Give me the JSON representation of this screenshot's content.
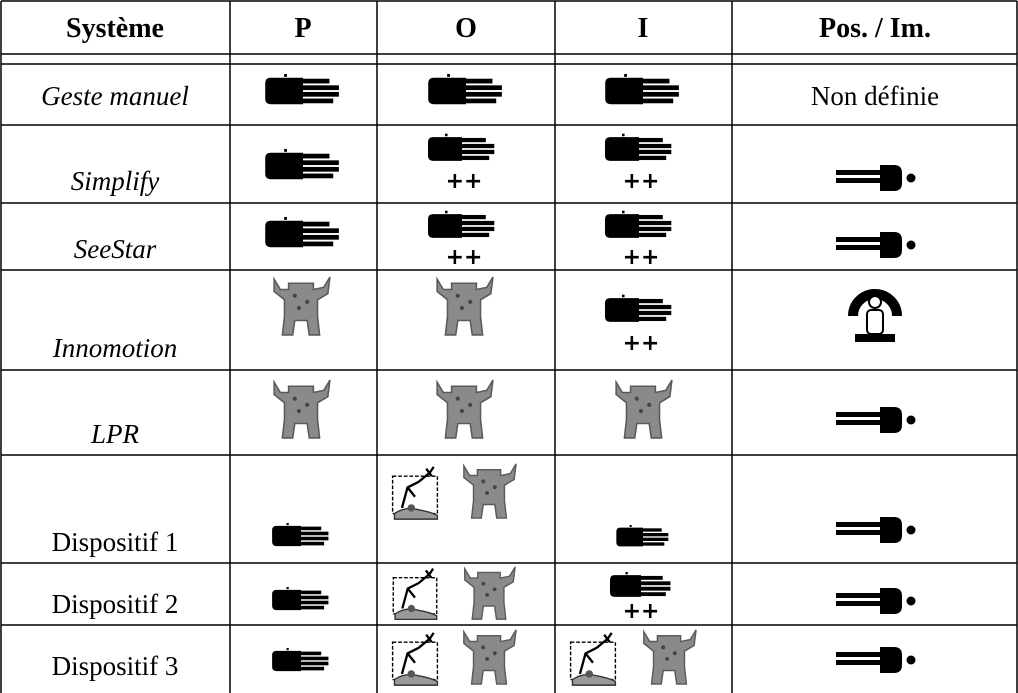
{
  "table": {
    "headers": [
      "Système",
      "P",
      "O",
      "I",
      "Pos. / Im."
    ],
    "rows": [
      {
        "system": "Geste manuel",
        "pos": "Non définie"
      },
      {
        "system": "Simplify",
        "O": "++",
        "I": "++"
      },
      {
        "system": "SeeStar",
        "O": "++",
        "I": "++"
      },
      {
        "system": "Innomotion",
        "I": "++"
      },
      {
        "system": "LPR"
      },
      {
        "system": "Dispositif 1"
      },
      {
        "system": "Dispositif 2",
        "I": "++"
      },
      {
        "system": "Dispositif 3"
      }
    ]
  }
}
